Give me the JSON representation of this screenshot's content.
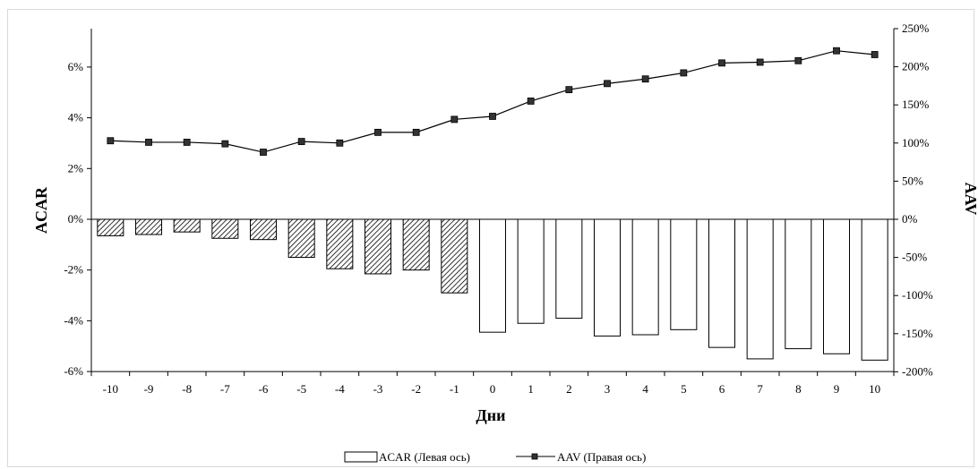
{
  "chart_data": {
    "type": "bar",
    "categories": [
      "-10",
      "-9",
      "-8",
      "-7",
      "-6",
      "-5",
      "-4",
      "-3",
      "-2",
      "-1",
      "0",
      "1",
      "2",
      "3",
      "4",
      "5",
      "6",
      "7",
      "8",
      "9",
      "10"
    ],
    "xlabel": "Дни",
    "ylabel_left": "ACAR",
    "ylabel_right": "AAV",
    "ylim_left": [
      -6,
      7.5
    ],
    "ylim_right": [
      -200,
      250
    ],
    "yticks_left": [
      "6%",
      "4%",
      "2%",
      "0%",
      "-2%",
      "-4%",
      "-6%"
    ],
    "yticks_left_values": [
      6,
      4,
      2,
      0,
      -2,
      -4,
      -6
    ],
    "yticks_right": [
      "250%",
      "200%",
      "150%",
      "100%",
      "50%",
      "0%",
      "-50%",
      "-100%",
      "-150%",
      "-200%"
    ],
    "yticks_right_values": [
      250,
      200,
      150,
      100,
      50,
      0,
      -50,
      -100,
      -150,
      -200
    ],
    "grid": false,
    "legend_position": "bottom-center",
    "series": [
      {
        "name": "ACAR (Левая ось)",
        "type": "bar",
        "axis": "left",
        "values": [
          -0.65,
          -0.6,
          -0.5,
          -0.75,
          -0.8,
          -1.5,
          -1.95,
          -2.15,
          -2.0,
          -2.9,
          -4.45,
          -4.1,
          -3.9,
          -4.6,
          -4.55,
          -4.35,
          -5.05,
          -5.5,
          -5.1,
          -5.3,
          -5.55
        ],
        "hatched_until_index": 9
      },
      {
        "name": "AAV (Правая ось)",
        "type": "line",
        "axis": "right",
        "values": [
          103,
          101,
          101,
          99,
          88,
          102,
          100,
          114,
          114,
          131,
          135,
          155,
          170,
          178,
          184,
          192,
          205,
          206,
          208,
          221,
          216
        ]
      }
    ],
    "colors": {
      "bar_fill": "#ffffff",
      "bar_stroke": "#000000",
      "hatch": "#000000",
      "line": "#000000",
      "marker": "#333333"
    }
  }
}
